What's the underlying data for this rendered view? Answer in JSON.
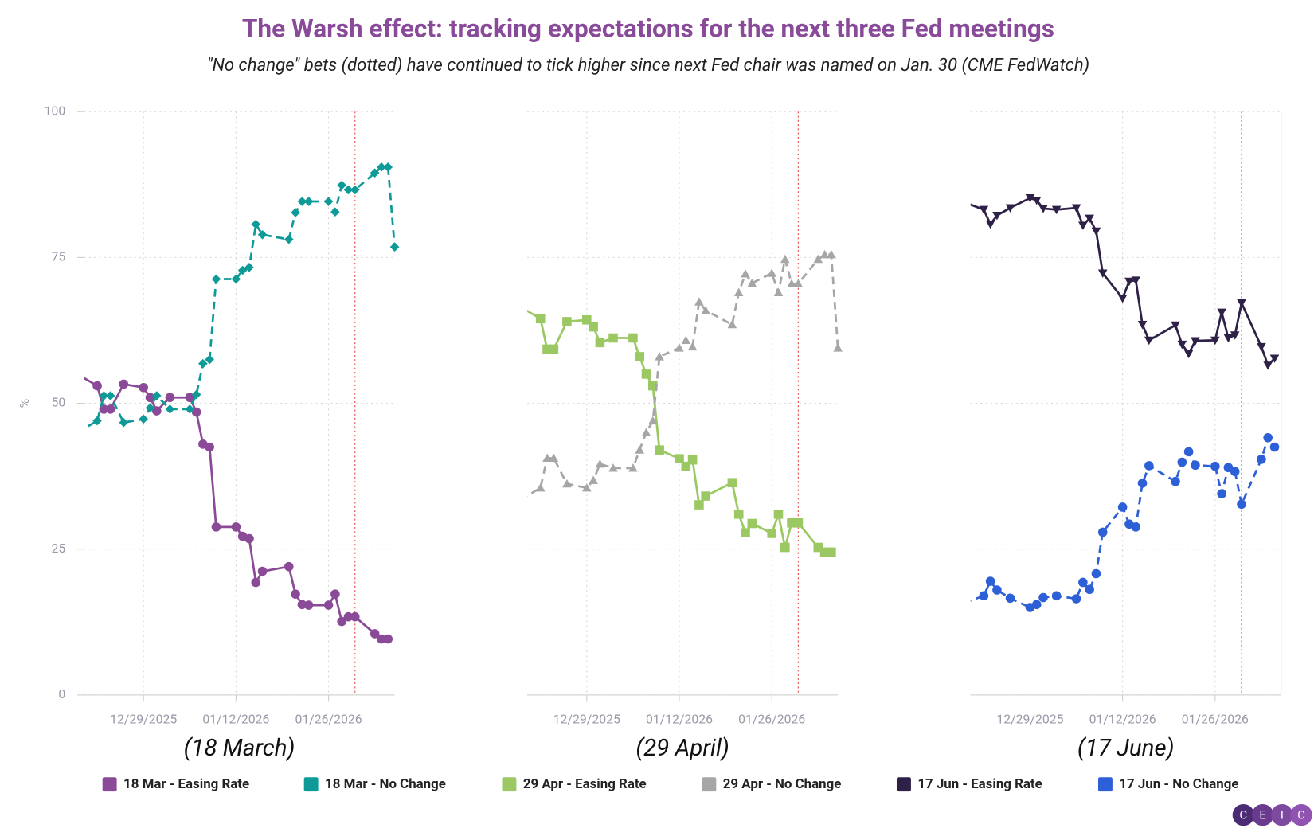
{
  "title": "The Warsh effect: tracking expectations for the next three Fed meetings",
  "subtitle": "\"No change\" bets (dotted) have continued to tick higher since next Fed chair was named on Jan. 30 (CME FedWatch)",
  "logo": [
    "C",
    "E",
    "I",
    "C"
  ],
  "chart_data": [
    {
      "type": "line",
      "title": "(18 March)",
      "ylabel": "%",
      "y_tick_labels": true,
      "x": [
        "12/19/2025",
        "12/22/2025",
        "12/23/2025",
        "12/24/2025",
        "12/26/2025",
        "12/29/2025",
        "12/30/2025",
        "12/31/2025",
        "01/02/2026",
        "01/05/2026",
        "01/06/2026",
        "01/07/2026",
        "01/08/2026",
        "01/09/2026",
        "01/12/2026",
        "01/13/2026",
        "01/14/2026",
        "01/15/2026",
        "01/16/2026",
        "01/20/2026",
        "01/21/2026",
        "01/22/2026",
        "01/23/2026",
        "01/26/2026",
        "01/27/2026",
        "01/28/2026",
        "01/29/2026",
        "01/30/2026",
        "02/02/2026",
        "02/03/2026",
        "02/04/2026",
        "02/05/2026"
      ],
      "xlim": [
        "12/20/2025",
        "02/05/2026"
      ],
      "xticks": [
        "12/29/2025",
        "01/12/2026",
        "01/26/2026"
      ],
      "ylim": [
        0,
        100
      ],
      "yticks": [
        0,
        25,
        50,
        75,
        100
      ],
      "grid": true,
      "reference_line": {
        "x": "01/30/2026",
        "color": "#e8605a"
      },
      "series": [
        {
          "name": "18 Mar - Easing Rate",
          "color": "#8b4a97",
          "marker": "circle",
          "dashed": false,
          "values": [
            55,
            53,
            49,
            49,
            53.3,
            52.7,
            51,
            48.7,
            51,
            51,
            48.5,
            43,
            42.5,
            28.8,
            28.8,
            27.2,
            26.8,
            19.3,
            21.2,
            22,
            17.3,
            15.5,
            15.4,
            15.4,
            17.3,
            12.6,
            13.4,
            13.4,
            10.5,
            9.6,
            9.6,
            null
          ]
        },
        {
          "name": "18 Mar - No Change",
          "color": "#0e9a97",
          "marker": "diamond",
          "dashed": true,
          "values": [
            45,
            47,
            51.3,
            51.3,
            46.7,
            47.3,
            49.2,
            51.3,
            49,
            49,
            51.5,
            56.8,
            57.5,
            71.3,
            71.3,
            72.8,
            73.3,
            80.7,
            78.9,
            78.1,
            82.7,
            84.6,
            84.6,
            84.6,
            82.8,
            87.4,
            86.6,
            86.6,
            89.5,
            90.5,
            90.5,
            76.8
          ]
        }
      ]
    },
    {
      "type": "line",
      "title": "(29 April)",
      "y_tick_labels": false,
      "x": [
        "12/19/2025",
        "12/22/2025",
        "12/23/2025",
        "12/24/2025",
        "12/26/2025",
        "12/29/2025",
        "12/30/2025",
        "12/31/2025",
        "01/02/2026",
        "01/05/2026",
        "01/06/2026",
        "01/07/2026",
        "01/08/2026",
        "01/09/2026",
        "01/12/2026",
        "01/13/2026",
        "01/14/2026",
        "01/15/2026",
        "01/16/2026",
        "01/20/2026",
        "01/21/2026",
        "01/22/2026",
        "01/23/2026",
        "01/26/2026",
        "01/27/2026",
        "01/28/2026",
        "01/29/2026",
        "01/30/2026",
        "02/02/2026",
        "02/03/2026",
        "02/04/2026",
        "02/05/2026"
      ],
      "xlim": [
        "12/20/2025",
        "02/05/2026"
      ],
      "xticks": [
        "12/29/2025",
        "01/12/2026",
        "01/26/2026"
      ],
      "ylim": [
        0,
        100
      ],
      "yticks": [
        0,
        25,
        50,
        75,
        100
      ],
      "grid": true,
      "reference_line": {
        "x": "01/30/2026",
        "color": "#e8605a"
      },
      "series": [
        {
          "name": "29 Apr - Easing Rate",
          "color": "#9bc863",
          "marker": "square",
          "dashed": false,
          "values": [
            66.5,
            64.5,
            59.3,
            59.3,
            64,
            64.3,
            63.1,
            60.4,
            61.2,
            61.2,
            58,
            55,
            53,
            42,
            40.5,
            39.2,
            40.3,
            32.6,
            34.1,
            36.4,
            31,
            27.8,
            29.4,
            27.7,
            31,
            25.3,
            29.5,
            29.5,
            25.3,
            24.5,
            24.5,
            null
          ]
        },
        {
          "name": "29 Apr - No Change",
          "color": "#a6a6a6",
          "marker": "triangle-up",
          "dashed": true,
          "values": [
            33.5,
            35.5,
            40.6,
            40.6,
            36.2,
            35.5,
            36.8,
            39.6,
            38.9,
            38.9,
            42,
            45,
            47,
            58,
            59.5,
            60.8,
            59.7,
            67.4,
            65.9,
            63.5,
            69,
            72.2,
            70.6,
            72.3,
            69,
            74.7,
            70.5,
            70.5,
            74.7,
            75.5,
            75.5,
            59.5
          ]
        }
      ]
    },
    {
      "type": "line",
      "title": "(17 June)",
      "y_tick_labels": false,
      "x": [
        "12/19/2025",
        "12/22/2025",
        "12/23/2025",
        "12/24/2025",
        "12/26/2025",
        "12/29/2025",
        "12/30/2025",
        "12/31/2025",
        "01/02/2026",
        "01/05/2026",
        "01/06/2026",
        "01/07/2026",
        "01/08/2026",
        "01/09/2026",
        "01/12/2026",
        "01/13/2026",
        "01/14/2026",
        "01/15/2026",
        "01/16/2026",
        "01/20/2026",
        "01/21/2026",
        "01/22/2026",
        "01/23/2026",
        "01/26/2026",
        "01/27/2026",
        "01/28/2026",
        "01/29/2026",
        "01/30/2026",
        "02/02/2026",
        "02/03/2026",
        "02/04/2026",
        "02/05/2026"
      ],
      "xlim": [
        "12/20/2025",
        "02/05/2026"
      ],
      "xticks": [
        "12/29/2025",
        "01/12/2026",
        "01/26/2026"
      ],
      "ylim": [
        0,
        100
      ],
      "yticks": [
        0,
        25,
        50,
        75,
        100
      ],
      "grid": true,
      "reference_line": {
        "x": "01/30/2026",
        "color": "#e8605a"
      },
      "series": [
        {
          "name": "17 Jun - Easing Rate",
          "color": "#2e2046",
          "marker": "triangle-down",
          "dashed": false,
          "values": [
            84.5,
            83.2,
            80.7,
            82.2,
            83.5,
            85.2,
            84.8,
            83.4,
            83.2,
            83.5,
            80.5,
            81.7,
            79.5,
            72.3,
            68,
            70.9,
            71.1,
            63.5,
            60.8,
            63.4,
            60.1,
            58.5,
            60.7,
            60.8,
            65.6,
            61.2,
            61.7,
            67.2,
            59.7,
            56.5,
            57.7,
            null
          ]
        },
        {
          "name": "17 Jun - No Change",
          "color": "#2d5fd6",
          "marker": "circle",
          "dashed": true,
          "values": [
            15.8,
            17,
            19.5,
            18,
            16.6,
            15,
            15.5,
            16.7,
            17,
            16.5,
            19.3,
            18.1,
            20.8,
            27.9,
            32.2,
            29.3,
            28.8,
            36.3,
            39.3,
            36.6,
            39.9,
            41.7,
            39.4,
            39.2,
            34.5,
            39,
            38.3,
            32.7,
            40.4,
            44.1,
            42.5,
            null
          ]
        }
      ]
    }
  ]
}
